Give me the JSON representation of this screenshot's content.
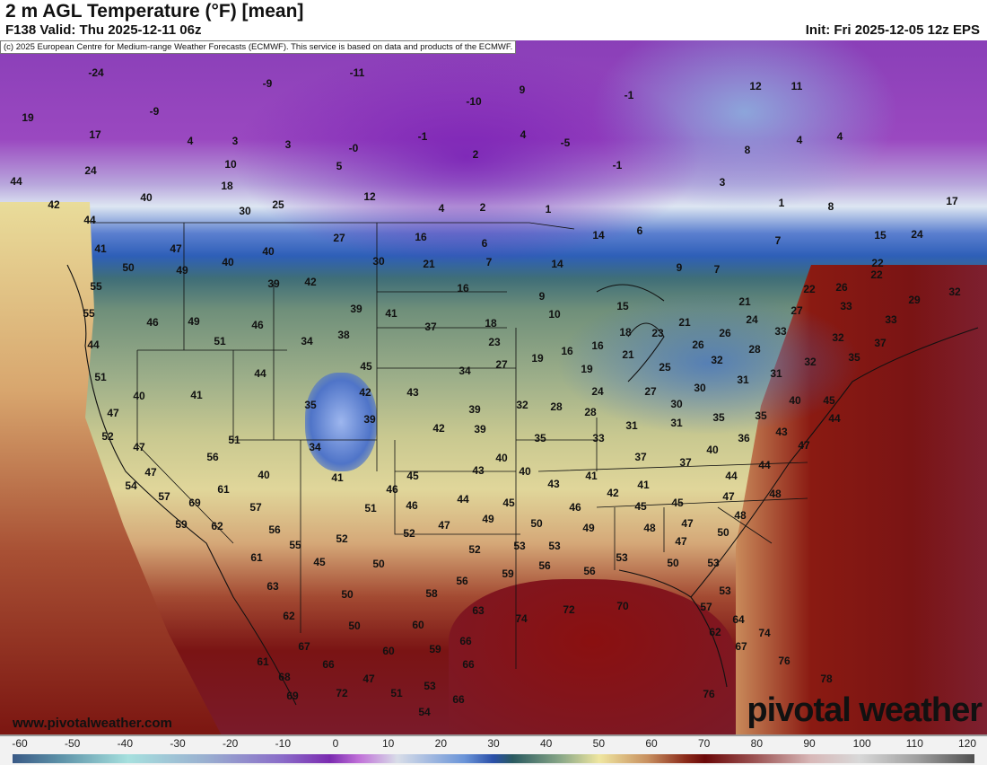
{
  "header": {
    "title": "2 m AGL Temperature (°F) [mean]",
    "valid": "F138 Valid: Thu 2025-12-11 06z",
    "init": "Init: Fri 2025-12-05 12z EPS",
    "credit": "(c) 2025 European Centre for Medium-range Weather Forecasts (ECMWF). This service is based on data and products of the ECMWF."
  },
  "footer": {
    "url": "www.pivotalweather.com",
    "brand": "pivotal weather"
  },
  "colorbar": {
    "unit": "°F",
    "ticks": [
      "-60",
      "-50",
      "-40",
      "-30",
      "-20",
      "-10",
      "0",
      "10",
      "20",
      "30",
      "40",
      "50",
      "60",
      "70",
      "80",
      "90",
      "100",
      "110",
      "120"
    ]
  },
  "map_labels": [
    "-24",
    "-11",
    "-9",
    "9",
    "12",
    "11",
    "19",
    "-9",
    "-10",
    "-1",
    "17",
    "4",
    "3",
    "3",
    "-0",
    "-1",
    "-5",
    "4",
    "4",
    "10",
    "5",
    "2",
    "4",
    "-1",
    "24",
    "18",
    "12",
    "2",
    "4",
    "40",
    "44",
    "42",
    "44",
    "30",
    "25",
    "1",
    "1",
    "8",
    "17",
    "16",
    "27",
    "6",
    "15",
    "24",
    "7",
    "22",
    "40",
    "47",
    "41",
    "30",
    "21",
    "7",
    "50",
    "49",
    "40",
    "39",
    "42",
    "55",
    "16",
    "9",
    "22",
    "26",
    "32",
    "29",
    "21",
    "55",
    "46",
    "49",
    "46",
    "39",
    "41",
    "37",
    "18",
    "10",
    "15",
    "33",
    "27",
    "33",
    "24",
    "23",
    "21",
    "18",
    "44",
    "51",
    "34",
    "38",
    "23",
    "16",
    "16",
    "26",
    "26",
    "33",
    "37",
    "35",
    "28",
    "32",
    "19",
    "27",
    "21",
    "25",
    "32",
    "32",
    "31",
    "31",
    "45",
    "44",
    "34",
    "51",
    "40",
    "41",
    "42",
    "43",
    "24",
    "27",
    "30",
    "19",
    "35",
    "39",
    "42",
    "39",
    "39",
    "32",
    "28",
    "28",
    "30",
    "31",
    "31",
    "35",
    "35",
    "40",
    "45",
    "44",
    "47",
    "52",
    "47",
    "51",
    "34",
    "35",
    "33",
    "37",
    "36",
    "43",
    "47",
    "56",
    "40",
    "45",
    "41",
    "40",
    "43",
    "40",
    "37",
    "40",
    "44",
    "44",
    "47",
    "54",
    "57",
    "69",
    "61",
    "46",
    "46",
    "43",
    "41",
    "42",
    "41",
    "45",
    "47",
    "48",
    "44",
    "45",
    "51",
    "57",
    "49",
    "47",
    "46",
    "45",
    "59",
    "62",
    "56",
    "55",
    "52",
    "52",
    "49",
    "48",
    "47",
    "48",
    "50",
    "53",
    "53",
    "52",
    "47",
    "50",
    "61",
    "45",
    "50",
    "56",
    "56",
    "53",
    "50",
    "59",
    "56",
    "53",
    "63",
    "50",
    "58",
    "53",
    "63",
    "62",
    "74",
    "72",
    "70",
    "60",
    "50",
    "57",
    "64",
    "59",
    "66",
    "62",
    "74",
    "67",
    "67",
    "61",
    "66",
    "60",
    "66",
    "76",
    "68",
    "47",
    "53",
    "72",
    "69",
    "51",
    "66",
    "78",
    "76",
    "54",
    "6",
    "3",
    "8",
    "14",
    "7",
    "9",
    "22",
    "14"
  ]
}
